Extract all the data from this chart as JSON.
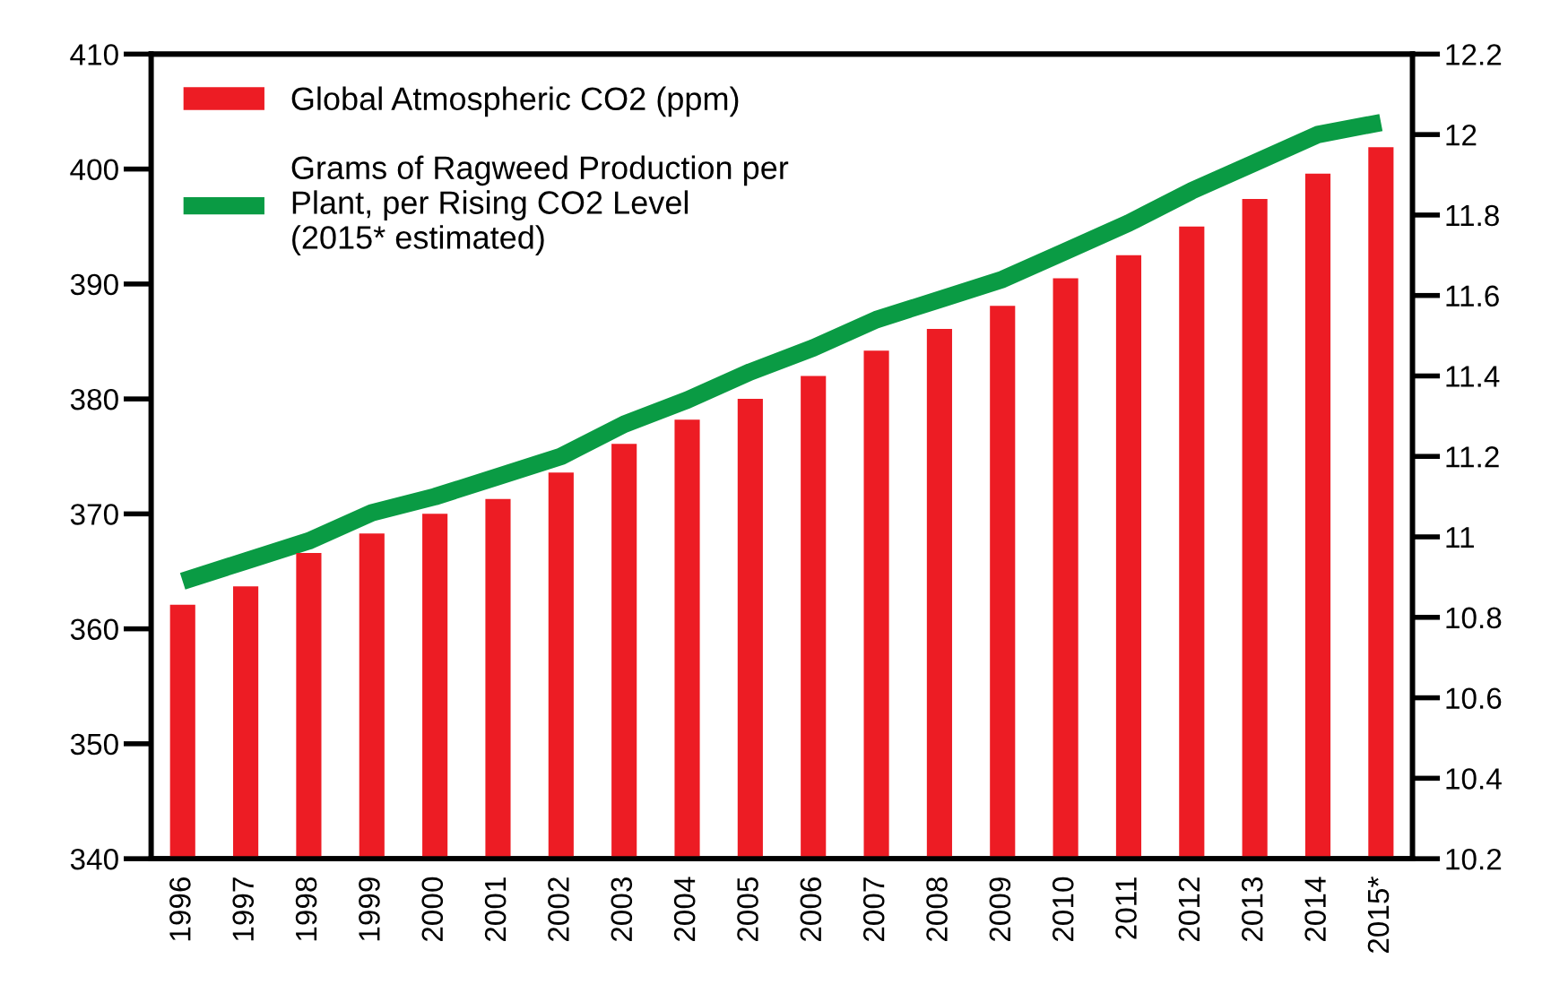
{
  "chart_data": {
    "type": "bar",
    "categories": [
      "1996",
      "1997",
      "1998",
      "1999",
      "2000",
      "2001",
      "2002",
      "2003",
      "2004",
      "2005",
      "2006",
      "2007",
      "2008",
      "2009",
      "2010",
      "2011",
      "2012",
      "2013",
      "2014",
      "2015*"
    ],
    "series": [
      {
        "name": "Global Atmospheric CO2 (ppm)",
        "color": "#ed1c24",
        "values": [
          362.1,
          363.7,
          366.6,
          368.3,
          370.0,
          371.3,
          373.6,
          376.1,
          378.2,
          380.0,
          382.0,
          384.2,
          386.1,
          388.1,
          390.5,
          392.5,
          395.0,
          397.4,
          399.6,
          401.9
        ]
      },
      {
        "name": "Grams of Ragweed Production per Plant, per Rising CO2 Level (2015* estimated)",
        "type": "line",
        "axis": "y2",
        "color": "#0a9b44",
        "values": [
          10.89,
          10.94,
          10.99,
          11.06,
          11.1,
          11.15,
          11.2,
          11.28,
          11.34,
          11.41,
          11.47,
          11.54,
          11.59,
          11.64,
          11.71,
          11.78,
          11.86,
          11.93,
          12.0,
          12.03
        ]
      }
    ],
    "ylim": [
      340,
      410
    ],
    "yticks": [
      340,
      350,
      360,
      370,
      380,
      390,
      400,
      410
    ],
    "y2lim": [
      10.2,
      12.2
    ],
    "y2ticks": [
      10.2,
      10.4,
      10.6,
      10.8,
      11,
      11.2,
      11.4,
      11.6,
      11.8,
      12,
      12.2
    ],
    "legend": "top left",
    "grid": false,
    "marker": "none",
    "line_style": "solid"
  }
}
